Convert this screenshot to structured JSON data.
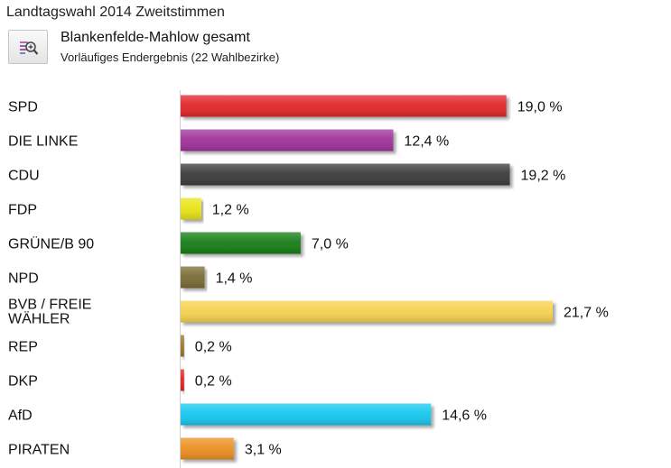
{
  "header": {
    "title": "Landtagswahl 2014 Zweitstimmen",
    "subtitle": "Blankenfelde-Mahlow gesamt",
    "note": "Vorläufiges Endergebnis (22 Wahlbezirke)",
    "zoom_icon": "magnifier-chart-icon"
  },
  "chart_data": {
    "type": "bar",
    "orientation": "horizontal",
    "title": "Landtagswahl 2014 Zweitstimmen",
    "subtitle": "Blankenfelde-Mahlow gesamt",
    "xlabel": "",
    "ylabel": "",
    "unit": "%",
    "xlim": [
      0,
      23
    ],
    "grid": false,
    "categories": [
      "SPD",
      "DIE LINKE",
      "CDU",
      "FDP",
      "GRÜNE/B 90",
      "NPD",
      "BVB / FREIE WÄHLER",
      "REP",
      "DKP",
      "AfD",
      "PIRATEN"
    ],
    "category_lines": [
      [
        "SPD"
      ],
      [
        "DIE LINKE"
      ],
      [
        "CDU"
      ],
      [
        "FDP"
      ],
      [
        "GRÜNE/B 90"
      ],
      [
        "NPD"
      ],
      [
        "BVB / FREIE",
        "WÄHLER"
      ],
      [
        "REP"
      ],
      [
        "DKP"
      ],
      [
        "AfD"
      ],
      [
        "PIRATEN"
      ]
    ],
    "values": [
      19.0,
      12.4,
      19.2,
      1.2,
      7.0,
      1.4,
      21.7,
      0.2,
      0.2,
      14.6,
      3.1
    ],
    "value_labels": [
      "19,0 %",
      "12,4 %",
      "19,2 %",
      "1,2 %",
      "7,0 %",
      "1,4 %",
      "21,7 %",
      "0,2 %",
      "0,2 %",
      "14,6 %",
      "3,1 %"
    ],
    "colors": [
      "#e2262a",
      "#a0309a",
      "#3a3a3a",
      "#e8e414",
      "#147d14",
      "#7a6c36",
      "#f7d150",
      "#9b7530",
      "#e02020",
      "#14c8f0",
      "#ec9020"
    ]
  }
}
